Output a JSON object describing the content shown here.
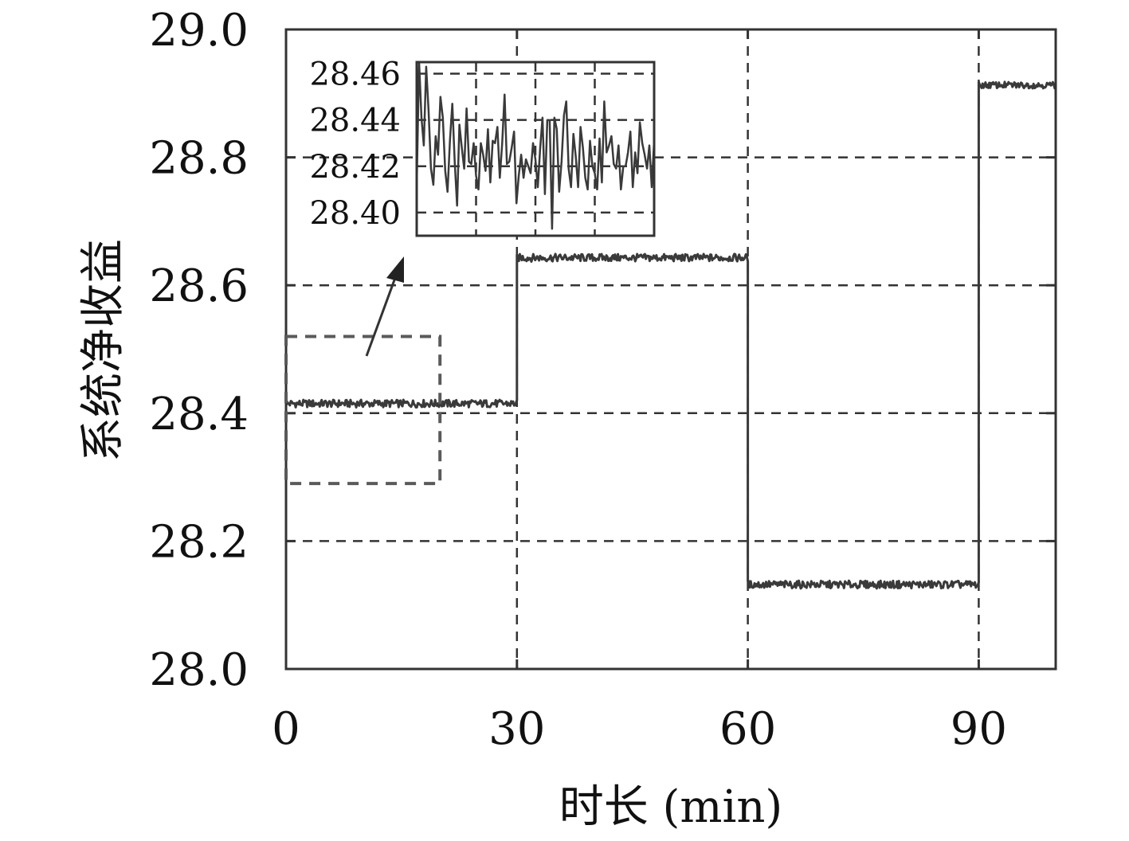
{
  "chart_data": {
    "type": "line",
    "xlabel": "时长 (min)",
    "ylabel": "系统净收益",
    "xlim": [
      0,
      100
    ],
    "ylim": [
      28.0,
      29.0
    ],
    "x_ticks": [
      0,
      30,
      60,
      90
    ],
    "y_ticks": [
      28.0,
      28.2,
      28.4,
      28.6,
      28.8,
      29.0
    ],
    "x_tick_labels": [
      "0",
      "30",
      "60",
      "90"
    ],
    "y_tick_labels": [
      "28.0",
      "28.2",
      "28.4",
      "28.6",
      "28.8",
      "29.0"
    ],
    "grid": true,
    "grid_style": "dashed",
    "line_color": "#3a3a3a",
    "series": [
      {
        "segments": [
          {
            "x_start": 0,
            "x_end": 30,
            "mean": 28.415,
            "noise": 0.006
          },
          {
            "x_start": 30,
            "x_end": 60,
            "mean": 28.643,
            "noise": 0.006
          },
          {
            "x_start": 60,
            "x_end": 90,
            "mean": 28.132,
            "noise": 0.006
          },
          {
            "x_start": 90,
            "x_end": 100,
            "mean": 28.913,
            "noise": 0.005
          }
        ]
      }
    ],
    "highlight_region": {
      "x": [
        0,
        20
      ],
      "y": [
        28.29,
        28.52
      ]
    },
    "inset": {
      "source_x": [
        0,
        20
      ],
      "ylim": [
        28.39,
        28.465
      ],
      "y_ticks": [
        28.4,
        28.42,
        28.44,
        28.46
      ],
      "y_tick_labels": [
        "28.40",
        "28.42",
        "28.44",
        "28.46"
      ],
      "placement": "top-left",
      "values": [
        28.412,
        28.465,
        28.441,
        28.429,
        28.463,
        28.444,
        28.419,
        28.412,
        28.433,
        28.425,
        28.45,
        28.441,
        28.418,
        28.409,
        28.431,
        28.447,
        28.422,
        28.403,
        28.438,
        28.428,
        28.419,
        28.445,
        28.422,
        28.421,
        28.43,
        28.416,
        28.41,
        28.43,
        28.425,
        28.418,
        28.436,
        28.413,
        28.431,
        28.43,
        28.437,
        28.415,
        28.43,
        28.451,
        28.421,
        28.422,
        28.428,
        28.435,
        28.404,
        28.416,
        28.425,
        28.415,
        28.423,
        28.42,
        28.417,
        28.43,
        28.423,
        28.411,
        28.428,
        28.441,
        28.408,
        28.44,
        28.44,
        28.393,
        28.441,
        28.436,
        28.409,
        28.422,
        28.442,
        28.448,
        28.419,
        28.411,
        28.434,
        28.424,
        28.411,
        28.437,
        28.428,
        28.415,
        28.41,
        28.431,
        28.42,
        28.417,
        28.41,
        28.432,
        28.413,
        28.448,
        28.426,
        28.429,
        28.433,
        28.421,
        28.419,
        28.429,
        28.41,
        28.42,
        28.42,
        28.426,
        28.435,
        28.411,
        28.426,
        28.417,
        28.439,
        28.43,
        28.425,
        28.419,
        28.429,
        28.411,
        28.431
      ]
    }
  }
}
